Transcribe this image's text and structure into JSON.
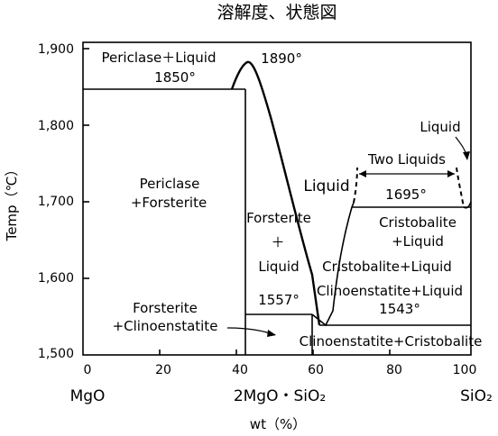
{
  "title": "溶解度、状態図",
  "axes": {
    "ylabel": "Temp（℃）",
    "xlabel": "wt（%）",
    "y_ticks": [
      "1,500",
      "1,600",
      "1,700",
      "1,800",
      "1,900"
    ],
    "x_ticks": [
      "0",
      "20",
      "40",
      "60",
      "80",
      "100"
    ],
    "components": {
      "left": "MgO",
      "middle": "2MgO・SiO₂",
      "right": "SiO₂"
    }
  },
  "regions": {
    "periclase_liquid": "Periclase＋Liquid",
    "periclase": "Periclase",
    "plus_forsterite": "+Forsterite",
    "forsterite_top": "Forsterite",
    "plus": "＋",
    "liquid_mid": "Liquid",
    "forsterite": "Forsterite",
    "plus_clinoenstatite": "+Clinoenstatite",
    "liquid_big": "Liquid",
    "two_liquids": "Two Liquids",
    "liquid_top": "Liquid",
    "cristobalite": "Cristobalite",
    "plus_liquid": "+Liquid",
    "cristobalite_liquid": "Cristobalite+Liquid",
    "clinoenstatite_liquid": "Clinoenstatite+Liquid",
    "clinoenstatite_cristobalite": "Clinoenstatite+Cristobalite"
  },
  "temperatures": {
    "t1890": "1890°",
    "t1850": "1850°",
    "t1695": "1695°",
    "t1557": "1557°",
    "t1543": "1543°"
  }
}
